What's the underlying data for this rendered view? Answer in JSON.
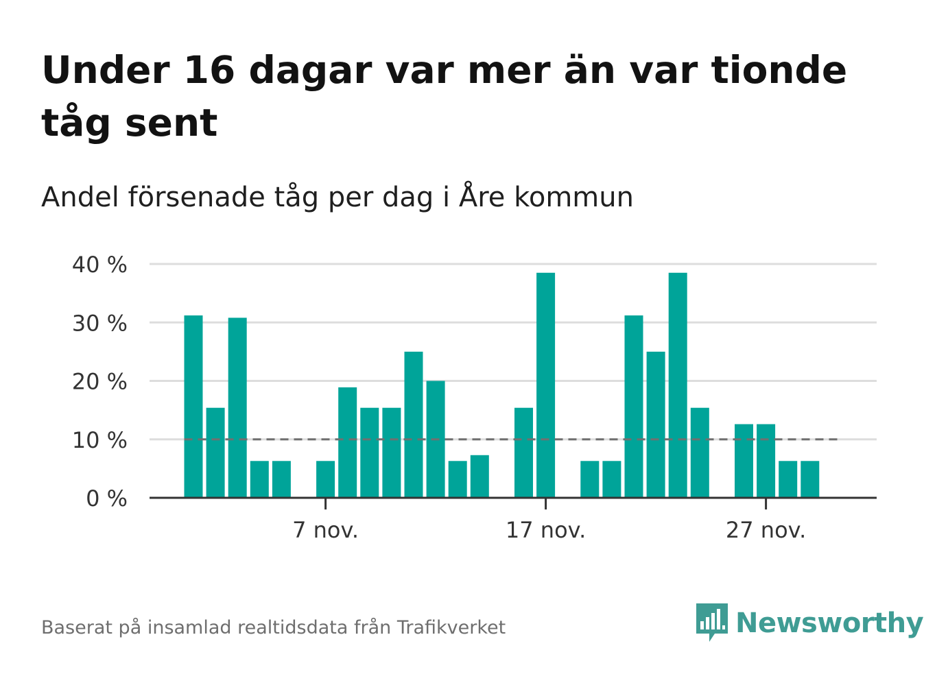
{
  "title": "Under 16 dagar var mer än var tionde tåg sent",
  "subtitle": "Andel försenade tåg per dag i Åre kommun",
  "footer": "Baserat på insamlad realtidsdata från Trafikverket",
  "brand": "Newsworthy",
  "colors": {
    "bar": "#00a499",
    "reference_line": "#707070",
    "grid": "#dddddd",
    "axis": "#333333",
    "brand": "#3f9c94"
  },
  "chart_data": {
    "type": "bar",
    "x_unit": "day of November",
    "x": [
      1,
      2,
      3,
      4,
      5,
      6,
      7,
      8,
      9,
      10,
      11,
      12,
      13,
      14,
      15,
      16,
      17,
      18,
      19,
      20,
      21,
      22,
      23,
      24,
      25,
      26,
      27,
      28,
      29,
      30
    ],
    "values": [
      31.2,
      15.4,
      30.8,
      6.3,
      6.3,
      null,
      6.3,
      18.9,
      15.4,
      15.4,
      25.0,
      20.0,
      6.3,
      7.3,
      null,
      15.4,
      38.5,
      null,
      6.3,
      6.3,
      31.2,
      25.0,
      38.5,
      15.4,
      null,
      12.6,
      12.6,
      6.3,
      6.3,
      null
    ],
    "yticks": [
      0,
      10,
      20,
      30,
      40
    ],
    "ytick_labels": [
      "0 %",
      "10 %",
      "20 %",
      "30 %",
      "40 %"
    ],
    "ylim": [
      0,
      40
    ],
    "xticks": [
      7,
      17,
      27
    ],
    "xtick_labels": [
      "7 nov.",
      "17 nov.",
      "27 nov."
    ],
    "reference_line": 10,
    "grid": true,
    "legend": "none"
  }
}
